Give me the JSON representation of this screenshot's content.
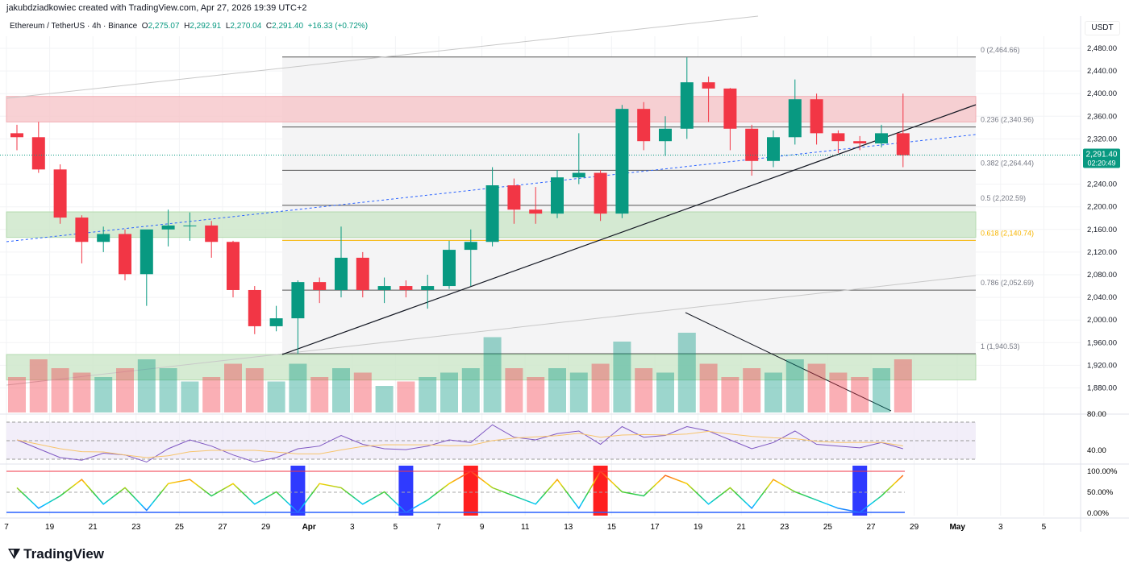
{
  "header": {
    "credit": "jakubdziadkowiec created with TradingView.com, Apr 27, 2026 19:39 UTC+2",
    "symbol": "Ethereum / TetherUS · 4h · Binance",
    "open_label": "O",
    "open": "2,275.07",
    "high_label": "H",
    "high": "2,292.91",
    "low_label": "L",
    "low": "2,270.04",
    "close_label": "C",
    "close": "2,291.40",
    "change": "+16.33 (+0.72%)"
  },
  "currency": "USDT",
  "last_price": "2,291.40",
  "countdown": "02:20:49",
  "logo": "TradingView",
  "colors": {
    "up": "#089981",
    "down": "#f23645",
    "fib": "#787b86",
    "fib618": "#f7b500",
    "red_zone": "#f7c9cd",
    "green_zone": "#cfe8cc",
    "rsi": "#7e57c2",
    "rsi_ma": "#f7c46c",
    "stoch_up_block": "#2f3aff",
    "stoch_down_block": "#ff1f1f"
  },
  "chart_data": {
    "type": "candlestick",
    "timeframe": "4h",
    "y_ticks": [
      2480,
      2440,
      2400,
      2360,
      2320,
      2240,
      2200,
      2160,
      2120,
      2080,
      2040,
      2000,
      1960,
      1920,
      1880
    ],
    "x_ticks": [
      "7",
      "19",
      "21",
      "23",
      "25",
      "27",
      "29",
      "Apr",
      "3",
      "5",
      "7",
      "9",
      "11",
      "13",
      "15",
      "17",
      "19",
      "21",
      "23",
      "25",
      "27",
      "29",
      "May",
      "3",
      "5"
    ],
    "fib": [
      {
        "label": "0 (2,464.66)",
        "price": 2464.66
      },
      {
        "label": "0.236 (2,340.96)",
        "price": 2340.96
      },
      {
        "label": "0.382 (2,264.44)",
        "price": 2264.44
      },
      {
        "label": "0.5 (2,202.59)",
        "price": 2202.59
      },
      {
        "label": "0.618 (2,140.74)",
        "price": 2140.74
      },
      {
        "label": "0.786 (2,052.69)",
        "price": 2052.69
      },
      {
        "label": "1 (1,940.53)",
        "price": 1940.53
      }
    ],
    "zones": [
      {
        "type": "resistance",
        "from": 2350,
        "to": 2395
      },
      {
        "type": "support",
        "from": 2146,
        "to": 2191
      },
      {
        "type": "support",
        "from": 1894,
        "to": 1939
      }
    ],
    "ohlc_daily": [
      [
        "Mar 17",
        2330,
        2345,
        2300,
        2323
      ],
      [
        "Mar 18",
        2323,
        2350,
        2260,
        2266
      ],
      [
        "Mar 19",
        2266,
        2275,
        2170,
        2181
      ],
      [
        "Mar 20",
        2181,
        2185,
        2100,
        2138
      ],
      [
        "Mar 21",
        2138,
        2165,
        2120,
        2152
      ],
      [
        "Mar 22",
        2152,
        2160,
        2070,
        2081
      ],
      [
        "Mar 23",
        2081,
        2090,
        2025,
        2160
      ],
      [
        "Mar 24",
        2160,
        2195,
        2130,
        2167
      ],
      [
        "Mar 25",
        2167,
        2190,
        2140,
        2167
      ],
      [
        "Mar 26",
        2167,
        2175,
        2110,
        2138
      ],
      [
        "Mar 27",
        2138,
        2140,
        2040,
        2053
      ],
      [
        "Mar 28",
        2053,
        2060,
        1975,
        1989
      ],
      [
        "Mar 29",
        1989,
        2025,
        1980,
        2003
      ],
      [
        "Mar 30",
        2003,
        2070,
        1940,
        2067
      ],
      [
        "Mar 31",
        2067,
        2075,
        2030,
        2053
      ],
      [
        "Apr 1",
        2053,
        2165,
        2040,
        2110
      ],
      [
        "Apr 2",
        2110,
        2120,
        2040,
        2053
      ],
      [
        "Apr 3",
        2053,
        2075,
        2030,
        2060
      ],
      [
        "Apr 4",
        2060,
        2070,
        2040,
        2053
      ],
      [
        "Apr 5",
        2053,
        2080,
        2020,
        2060
      ],
      [
        "Apr 6",
        2060,
        2140,
        2055,
        2124
      ],
      [
        "Apr 7",
        2124,
        2160,
        2060,
        2138
      ],
      [
        "Apr 8",
        2138,
        2270,
        2130,
        2238
      ],
      [
        "Apr 9",
        2238,
        2250,
        2170,
        2195
      ],
      [
        "Apr 10",
        2195,
        2235,
        2170,
        2188
      ],
      [
        "Apr 11",
        2188,
        2265,
        2180,
        2252
      ],
      [
        "Apr 12",
        2252,
        2330,
        2240,
        2260
      ],
      [
        "Apr 13",
        2260,
        2265,
        2175,
        2188
      ],
      [
        "Apr 14",
        2188,
        2380,
        2180,
        2373
      ],
      [
        "Apr 15",
        2373,
        2385,
        2300,
        2316
      ],
      [
        "Apr 16",
        2316,
        2360,
        2290,
        2338
      ],
      [
        "Apr 17",
        2338,
        2464,
        2320,
        2420
      ],
      [
        "Apr 18",
        2420,
        2430,
        2350,
        2409
      ],
      [
        "Apr 19",
        2409,
        2410,
        2300,
        2338
      ],
      [
        "Apr 20",
        2338,
        2345,
        2255,
        2281
      ],
      [
        "Apr 21",
        2281,
        2335,
        2270,
        2323
      ],
      [
        "Apr 22",
        2323,
        2425,
        2310,
        2390
      ],
      [
        "Apr 23",
        2390,
        2400,
        2310,
        2330
      ],
      [
        "Apr 24",
        2330,
        2335,
        2295,
        2316
      ],
      [
        "Apr 25",
        2316,
        2325,
        2300,
        2312
      ],
      [
        "Apr 26",
        2312,
        2345,
        2305,
        2330
      ],
      [
        "Apr 27",
        2330,
        2400,
        2270,
        2291
      ]
    ],
    "volume_relative": [
      0.4,
      0.6,
      0.5,
      0.45,
      0.4,
      0.5,
      0.6,
      0.5,
      0.35,
      0.4,
      0.55,
      0.5,
      0.35,
      0.55,
      0.4,
      0.5,
      0.45,
      0.3,
      0.35,
      0.4,
      0.45,
      0.5,
      0.85,
      0.5,
      0.4,
      0.5,
      0.45,
      0.55,
      0.8,
      0.5,
      0.45,
      0.9,
      0.55,
      0.4,
      0.5,
      0.45,
      0.6,
      0.55,
      0.45,
      0.4,
      0.5,
      0.6
    ],
    "rsi": {
      "ticks": [
        80,
        40
      ],
      "values": [
        55,
        45,
        35,
        32,
        40,
        38,
        30,
        45,
        55,
        48,
        38,
        30,
        35,
        45,
        48,
        60,
        50,
        45,
        44,
        48,
        55,
        52,
        72,
        58,
        55,
        62,
        65,
        50,
        70,
        58,
        60,
        70,
        65,
        55,
        45,
        52,
        65,
        50,
        48,
        46,
        52,
        45
      ]
    },
    "stoch_rsi": {
      "ticks": [
        "100.00%",
        "50.00%",
        "0.00%"
      ],
      "values": [
        60,
        10,
        40,
        80,
        20,
        60,
        5,
        70,
        80,
        40,
        70,
        20,
        50,
        0,
        70,
        60,
        20,
        50,
        0,
        30,
        70,
        100,
        60,
        40,
        20,
        80,
        10,
        100,
        50,
        40,
        90,
        70,
        20,
        60,
        10,
        80,
        50,
        30,
        10,
        0,
        40,
        90
      ]
    }
  }
}
